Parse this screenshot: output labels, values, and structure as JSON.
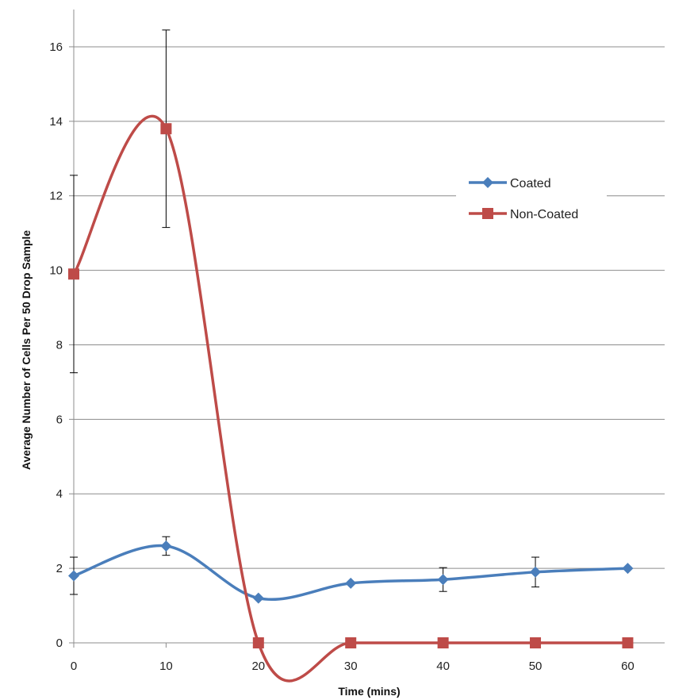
{
  "chart_data": {
    "type": "line",
    "title": "",
    "xlabel": "Time (mins)",
    "ylabel": "Average Number of Cells Per 50 Drop Sample",
    "x": [
      0,
      10,
      20,
      30,
      40,
      50,
      60
    ],
    "xlim": [
      0,
      60
    ],
    "ylim": [
      0,
      17
    ],
    "xticks": [
      "0",
      "10",
      "20",
      "30",
      "40",
      "50",
      "60"
    ],
    "yticks": [
      "0",
      "2",
      "4",
      "6",
      "8",
      "10",
      "12",
      "14",
      "16"
    ],
    "grid": "horizontal",
    "legend_position": "right",
    "smooth": true,
    "series": [
      {
        "name": "Coated",
        "color": "#4A7EBB",
        "marker": "diamond",
        "values": [
          1.8,
          2.6,
          1.2,
          1.6,
          1.7,
          1.9,
          2.0
        ],
        "error": [
          0.5,
          0.25,
          0.0,
          0.0,
          0.32,
          0.4,
          0.0
        ]
      },
      {
        "name": "Non-Coated",
        "color": "#BE4B48",
        "marker": "square",
        "values": [
          9.9,
          13.8,
          0.0,
          0.0,
          0.0,
          0.0,
          0.0
        ],
        "error": [
          2.65,
          2.65,
          0.0,
          0.0,
          0.0,
          0.0,
          0.0
        ]
      }
    ]
  }
}
